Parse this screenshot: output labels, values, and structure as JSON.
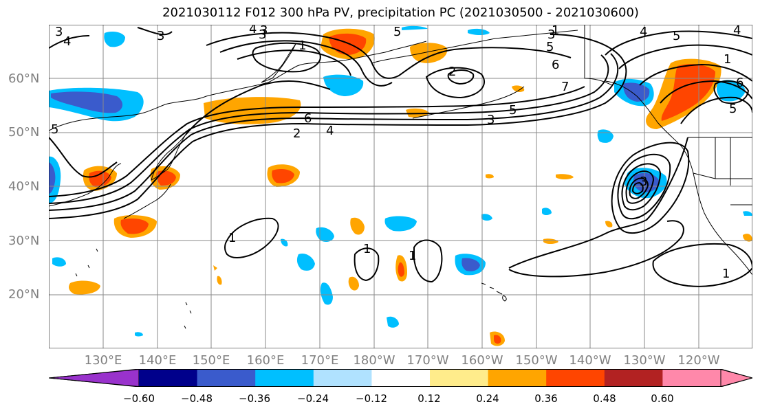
{
  "title": "2021030112 F012 300 hPa PV, precipitation PC (2021030500 - 2021030600)",
  "lat_labels": [
    "60°N",
    "50°N",
    "40°N",
    "30°N",
    "20°N"
  ],
  "lon_labels": [
    "130°E",
    "140°E",
    "150°E",
    "160°E",
    "170°E",
    "180°W",
    "170°W",
    "160°W",
    "150°W",
    "140°W",
    "130°W",
    "120°W"
  ],
  "contour_labels": [
    "3",
    "4",
    "3",
    "3",
    "4",
    "3",
    "5",
    "1",
    "2",
    "3",
    "4",
    "5",
    "6",
    "2",
    "6",
    "5",
    "3",
    "7",
    "1",
    "4",
    "5",
    "4",
    "6",
    "5",
    "3",
    "5",
    "1",
    "1",
    "1",
    "1",
    "1"
  ],
  "colorbar": {
    "ticks": [
      "−0.60",
      "−0.48",
      "−0.36",
      "−0.24",
      "−0.12",
      "0.12",
      "0.24",
      "0.36",
      "0.48",
      "0.60"
    ],
    "colors": [
      "#9932CC",
      "#00008B",
      "#3A5BCC",
      "#00BFFF",
      "#B0E2FF",
      "#FFFFFF",
      "#FFEC8B",
      "#FFA500",
      "#FF4500",
      "#B22222",
      "#FF88AA",
      "#FF88AA"
    ]
  }
}
